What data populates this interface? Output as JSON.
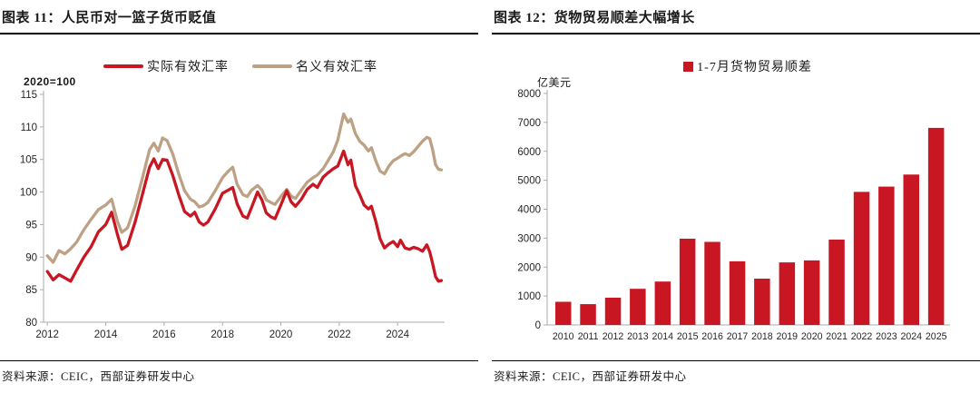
{
  "colors": {
    "series_red": "#C81722",
    "series_tan": "#BCA185",
    "axis_line": "#ABABAB",
    "text": "#1A1A1A"
  },
  "panels": [
    {
      "title": "图表 11：人民币对一篮子货币贬值",
      "source": "资料来源：CEIC，西部证券研发中心"
    },
    {
      "title": "图表 12：货物贸易顺差大幅增长",
      "source": "资料来源：CEIC，西部证券研发中心"
    }
  ],
  "chart_data": [
    {
      "type": "line",
      "title": "人民币对一篮子货币贬值",
      "unit_label": "2020=100",
      "grid": false,
      "legend_position": "top",
      "ylim": [
        80,
        115
      ],
      "yticks": [
        80,
        85,
        90,
        95,
        100,
        105,
        110,
        115
      ],
      "xticks": [
        2012,
        2014,
        2016,
        2018,
        2020,
        2022,
        2024
      ],
      "xlim": [
        2011.87,
        2025.61
      ],
      "x": [
        2012.0,
        2012.2,
        2012.4,
        2012.6,
        2012.8,
        2013.0,
        2013.25,
        2013.5,
        2013.75,
        2014.0,
        2014.2,
        2014.4,
        2014.55,
        2014.75,
        2015.0,
        2015.25,
        2015.5,
        2015.65,
        2015.8,
        2015.95,
        2016.1,
        2016.3,
        2016.5,
        2016.7,
        2016.9,
        2017.05,
        2017.2,
        2017.35,
        2017.5,
        2017.75,
        2018.0,
        2018.2,
        2018.35,
        2018.5,
        2018.7,
        2018.85,
        2019.0,
        2019.2,
        2019.35,
        2019.5,
        2019.65,
        2019.8,
        2020.0,
        2020.2,
        2020.35,
        2020.5,
        2020.7,
        2020.9,
        2021.1,
        2021.25,
        2021.45,
        2021.6,
        2021.8,
        2021.95,
        2022.15,
        2022.3,
        2022.4,
        2022.55,
        2022.7,
        2022.85,
        2023.0,
        2023.1,
        2023.25,
        2023.4,
        2023.55,
        2023.7,
        2023.85,
        2024.0,
        2024.1,
        2024.25,
        2024.4,
        2024.55,
        2024.7,
        2024.85,
        2025.0,
        2025.1,
        2025.2,
        2025.3,
        2025.4,
        2025.5
      ],
      "series": [
        {
          "name": "名义有效汇率",
          "color": "#BCA185",
          "values": [
            90.2,
            89.2,
            91.0,
            90.5,
            91.3,
            92.3,
            94.2,
            95.8,
            97.3,
            98.0,
            98.9,
            95.5,
            93.8,
            94.5,
            97.8,
            102.0,
            106.5,
            107.5,
            106.3,
            108.3,
            107.9,
            105.8,
            102.8,
            100.2,
            98.9,
            98.5,
            97.7,
            97.9,
            98.4,
            100.2,
            102.2,
            103.2,
            103.8,
            101.2,
            99.6,
            99.3,
            100.3,
            101.0,
            100.3,
            98.8,
            98.4,
            98.1,
            99.3,
            100.4,
            99.4,
            99.0,
            100.3,
            101.5,
            102.2,
            102.6,
            103.6,
            104.7,
            106.2,
            108.0,
            112.0,
            110.7,
            111.2,
            109.0,
            107.8,
            107.2,
            106.3,
            106.8,
            104.8,
            103.2,
            102.8,
            104.0,
            104.8,
            105.2,
            105.5,
            105.9,
            105.6,
            106.2,
            107.0,
            107.8,
            108.4,
            108.2,
            106.5,
            104.2,
            103.5,
            103.4
          ]
        },
        {
          "name": "实际有效汇率",
          "color": "#C81722",
          "values": [
            87.8,
            86.5,
            87.3,
            86.8,
            86.3,
            88.0,
            90.0,
            91.6,
            93.9,
            95.0,
            96.9,
            93.5,
            91.2,
            91.8,
            95.3,
            99.5,
            103.8,
            105.1,
            103.6,
            105.0,
            104.9,
            102.5,
            99.6,
            97.0,
            96.3,
            96.9,
            95.4,
            94.9,
            95.4,
            97.4,
            99.8,
            100.3,
            100.7,
            98.2,
            96.3,
            96.0,
            97.7,
            100.0,
            98.8,
            96.8,
            96.2,
            95.9,
            98.0,
            100.2,
            98.5,
            97.8,
            98.9,
            100.4,
            101.2,
            100.7,
            102.3,
            102.9,
            103.6,
            104.0,
            106.3,
            104.2,
            104.9,
            101.0,
            99.6,
            98.0,
            97.4,
            97.8,
            95.5,
            92.8,
            91.4,
            92.0,
            92.4,
            91.6,
            92.6,
            91.4,
            91.2,
            91.5,
            91.3,
            90.9,
            91.9,
            90.8,
            89.0,
            87.0,
            86.3,
            86.4
          ]
        }
      ],
      "legend_order_display": [
        "实际有效汇率",
        "名义有效汇率"
      ]
    },
    {
      "type": "bar",
      "title": "货物贸易顺差大幅增长",
      "unit_label": "亿美元",
      "legend": "1-7月货物贸易顺差",
      "grid": false,
      "bar_color": "#C81722",
      "ylim": [
        0,
        8000
      ],
      "yticks": [
        0,
        1000,
        2000,
        3000,
        4000,
        5000,
        6000,
        7000,
        8000
      ],
      "categories": [
        "2010",
        "2011",
        "2012",
        "2013",
        "2014",
        "2015",
        "2016",
        "2017",
        "2018",
        "2019",
        "2020",
        "2021",
        "2022",
        "2023",
        "2024",
        "2025"
      ],
      "values": [
        800,
        720,
        940,
        1250,
        1500,
        2980,
        2870,
        2200,
        1600,
        2160,
        2230,
        2950,
        4600,
        4780,
        5200,
        6810
      ]
    }
  ]
}
